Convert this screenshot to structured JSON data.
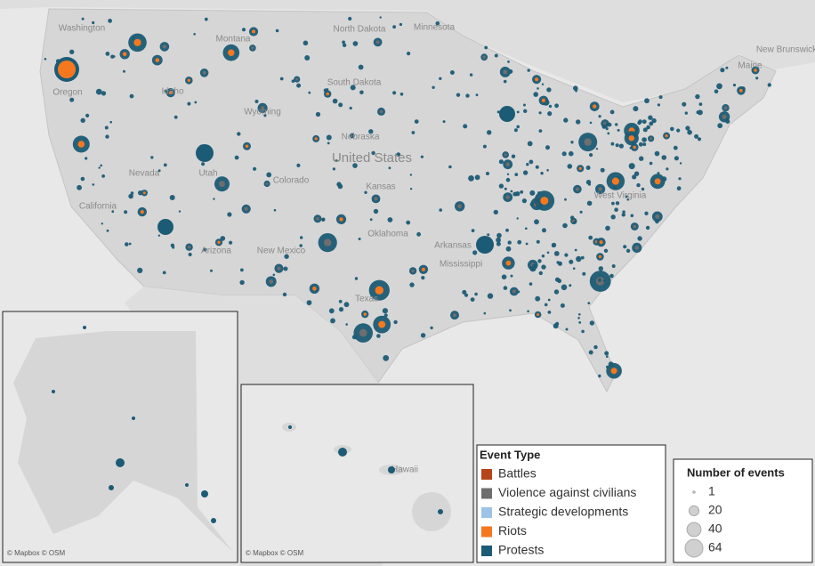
{
  "map_labels": [
    "Washington",
    "Montana",
    "North Dakota",
    "South Dakota",
    "Minnesota",
    "Oregon",
    "Idaho",
    "Wyoming",
    "Nebraska",
    "United States",
    "Nevada",
    "Utah",
    "Colorado",
    "Kansas",
    "California",
    "Arizona",
    "New Mexico",
    "Oklahoma",
    "Arkansas",
    "Texas",
    "Mississippi",
    "West Virginia",
    "Maine",
    "New Brunswick",
    "Hawaii"
  ],
  "attribution": "© Mapbox © OSM",
  "color_legend": {
    "title": "Event Type",
    "items": [
      {
        "name": "Battles",
        "color": "#b5441a"
      },
      {
        "name": "Violence against civilians",
        "color": "#6e6e6e"
      },
      {
        "name": "Strategic developments",
        "color": "#9dc3e6"
      },
      {
        "name": "Riots",
        "color": "#f5781f"
      },
      {
        "name": "Protests",
        "color": "#1c5b75"
      }
    ]
  },
  "size_legend": {
    "title": "Number of events",
    "values": [
      1,
      20,
      40,
      64
    ]
  }
}
